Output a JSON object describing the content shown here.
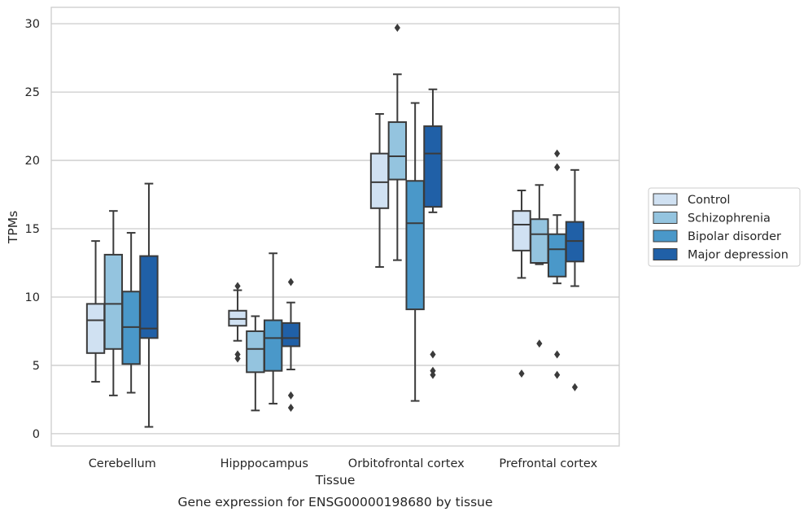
{
  "caption": "Gene expression for ENSG00000198680 by tissue",
  "chart_data": {
    "type": "boxplot",
    "xlabel": "Tissue",
    "ylabel": "TPMs",
    "ylim": [
      -0.9,
      31.2
    ],
    "yticks": [
      0,
      5,
      10,
      15,
      20,
      25,
      30
    ],
    "grid": "horizontal",
    "legend_position": "right",
    "categories": [
      "Cerebellum",
      "Hipppocampus",
      "Orbitofrontal cortex",
      "Prefrontal cortex"
    ],
    "series": [
      {
        "name": "Control",
        "color": "#d0e1f2",
        "boxes": [
          {
            "q1": 5.9,
            "median": 8.3,
            "q3": 9.5,
            "whisker_low": 3.8,
            "whisker_high": 14.1,
            "outliers": []
          },
          {
            "q1": 7.9,
            "median": 8.4,
            "q3": 9.0,
            "whisker_low": 6.8,
            "whisker_high": 10.5,
            "outliers": [
              10.8,
              5.8,
              5.5
            ]
          },
          {
            "q1": 16.5,
            "median": 18.4,
            "q3": 20.5,
            "whisker_low": 12.2,
            "whisker_high": 23.4,
            "outliers": []
          },
          {
            "q1": 13.4,
            "median": 15.3,
            "q3": 16.3,
            "whisker_low": 11.4,
            "whisker_high": 17.8,
            "outliers": [
              4.4
            ]
          }
        ]
      },
      {
        "name": "Schizophrenia",
        "color": "#94c4df",
        "boxes": [
          {
            "q1": 6.2,
            "median": 9.5,
            "q3": 13.1,
            "whisker_low": 2.8,
            "whisker_high": 16.3,
            "outliers": []
          },
          {
            "q1": 4.5,
            "median": 6.2,
            "q3": 7.5,
            "whisker_low": 1.7,
            "whisker_high": 8.6,
            "outliers": []
          },
          {
            "q1": 18.6,
            "median": 20.3,
            "q3": 22.8,
            "whisker_low": 12.7,
            "whisker_high": 26.3,
            "outliers": [
              29.7
            ]
          },
          {
            "q1": 12.5,
            "median": 14.6,
            "q3": 15.7,
            "whisker_low": 12.4,
            "whisker_high": 18.2,
            "outliers": [
              6.6
            ]
          }
        ]
      },
      {
        "name": "Bipolar disorder",
        "color": "#4a98c9",
        "boxes": [
          {
            "q1": 5.1,
            "median": 7.8,
            "q3": 10.4,
            "whisker_low": 3.0,
            "whisker_high": 14.7,
            "outliers": []
          },
          {
            "q1": 4.6,
            "median": 7.0,
            "q3": 8.3,
            "whisker_low": 2.2,
            "whisker_high": 13.2,
            "outliers": []
          },
          {
            "q1": 9.1,
            "median": 15.4,
            "q3": 18.5,
            "whisker_low": 2.4,
            "whisker_high": 24.2,
            "outliers": []
          },
          {
            "q1": 11.5,
            "median": 13.5,
            "q3": 14.6,
            "whisker_low": 11.0,
            "whisker_high": 16.0,
            "outliers": [
              20.5,
              19.5,
              5.8,
              4.3
            ]
          }
        ]
      },
      {
        "name": "Major depression",
        "color": "#2060a7",
        "boxes": [
          {
            "q1": 7.0,
            "median": 7.7,
            "q3": 13.0,
            "whisker_low": 0.5,
            "whisker_high": 18.3,
            "outliers": []
          },
          {
            "q1": 6.4,
            "median": 7.0,
            "q3": 8.1,
            "whisker_low": 4.7,
            "whisker_high": 9.6,
            "outliers": [
              11.1,
              2.8,
              1.9
            ]
          },
          {
            "q1": 16.6,
            "median": 20.5,
            "q3": 22.5,
            "whisker_low": 16.2,
            "whisker_high": 25.2,
            "outliers": [
              5.8,
              4.6,
              4.3
            ]
          },
          {
            "q1": 12.6,
            "median": 14.1,
            "q3": 15.5,
            "whisker_low": 10.8,
            "whisker_high": 19.3,
            "outliers": [
              3.4
            ]
          }
        ]
      }
    ]
  }
}
